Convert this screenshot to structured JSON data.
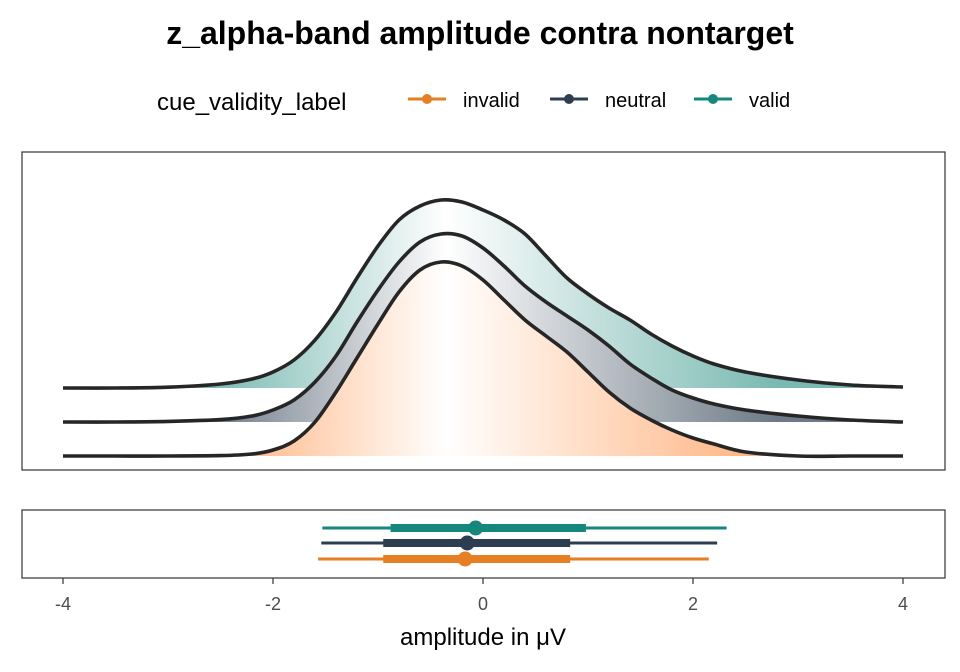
{
  "chart_data": {
    "type": "ridgeline",
    "title": "z_alpha-band amplitude contra nontarget",
    "xlabel": "amplitude in μV",
    "xlim": [
      -4,
      4
    ],
    "x_ticks": [
      -4,
      -2,
      0,
      2,
      4
    ],
    "x_tick_labels": [
      "-4",
      "-2",
      "0",
      "2",
      "4"
    ],
    "grid": false,
    "legend": {
      "title": "cue_validity_label",
      "position": "top",
      "entries": [
        {
          "label": "invalid",
          "color": "#E67E22"
        },
        {
          "label": "neutral",
          "color": "#2C3E50"
        },
        {
          "label": "valid",
          "color": "#16877D"
        }
      ]
    },
    "density_x": [
      -4,
      -3.5,
      -3,
      -2.5,
      -2.2,
      -2,
      -1.8,
      -1.6,
      -1.4,
      -1.2,
      -1,
      -0.8,
      -0.6,
      -0.4,
      -0.2,
      0,
      0.2,
      0.4,
      0.6,
      0.8,
      1,
      1.2,
      1.4,
      1.6,
      1.8,
      2,
      2.2,
      2.5,
      3,
      3.5,
      4
    ],
    "series": [
      {
        "name": "invalid",
        "color": "#E67E22",
        "fill_hi": "#FFB07A",
        "fill_mid": "#FFFFFF",
        "density": [
          0,
          0,
          0,
          0.002,
          0.01,
          0.03,
          0.075,
          0.17,
          0.32,
          0.49,
          0.66,
          0.82,
          0.93,
          0.97,
          0.95,
          0.88,
          0.78,
          0.68,
          0.6,
          0.52,
          0.42,
          0.32,
          0.24,
          0.18,
          0.13,
          0.09,
          0.06,
          0.02,
          0,
          0,
          0
        ]
      },
      {
        "name": "neutral",
        "color": "#2C3E50",
        "fill_hi": "#6E7A87",
        "fill_mid": "#FFFFFF",
        "density": [
          0,
          0,
          0.003,
          0.012,
          0.03,
          0.06,
          0.11,
          0.2,
          0.33,
          0.5,
          0.66,
          0.8,
          0.9,
          0.94,
          0.93,
          0.87,
          0.78,
          0.68,
          0.6,
          0.53,
          0.46,
          0.38,
          0.29,
          0.22,
          0.16,
          0.12,
          0.09,
          0.06,
          0.03,
          0.01,
          0
        ]
      },
      {
        "name": "valid",
        "color": "#16877D",
        "fill_hi": "#7AB9B2",
        "fill_mid": "#FFFFFF",
        "density": [
          0,
          0,
          0.004,
          0.02,
          0.045,
          0.08,
          0.14,
          0.24,
          0.38,
          0.55,
          0.71,
          0.84,
          0.91,
          0.94,
          0.93,
          0.89,
          0.84,
          0.77,
          0.66,
          0.55,
          0.47,
          0.4,
          0.34,
          0.27,
          0.21,
          0.16,
          0.12,
          0.08,
          0.04,
          0.015,
          0.005
        ]
      }
    ],
    "intervals": [
      {
        "name": "invalid",
        "color": "#E67E22",
        "point": -0.17,
        "inner": [
          -0.95,
          0.83
        ],
        "outer": [
          -1.57,
          2.15
        ]
      },
      {
        "name": "neutral",
        "color": "#2C3E50",
        "point": -0.15,
        "inner": [
          -0.95,
          0.83
        ],
        "outer": [
          -1.54,
          2.23
        ]
      },
      {
        "name": "valid",
        "color": "#16877D",
        "point": -0.07,
        "inner": [
          -0.88,
          0.98
        ],
        "outer": [
          -1.53,
          2.32
        ]
      }
    ]
  }
}
